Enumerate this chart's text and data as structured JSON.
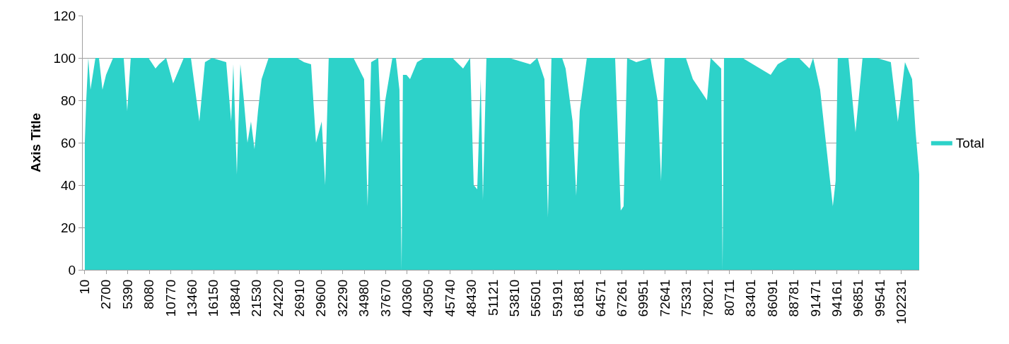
{
  "chart_data": {
    "type": "area",
    "ylabel": "Axis Title",
    "legend": "right",
    "grid": "y",
    "xlim": [
      -250,
      104450
    ],
    "ylim": [
      0,
      120
    ],
    "yticks": [
      0,
      20,
      40,
      60,
      80,
      100,
      120
    ],
    "xticks": [
      10,
      2700,
      5390,
      8080,
      10770,
      13460,
      16150,
      18840,
      21530,
      24220,
      26910,
      29600,
      32290,
      34980,
      37670,
      40360,
      43050,
      45740,
      48430,
      51121,
      53810,
      56501,
      59191,
      61881,
      64571,
      67261,
      69951,
      72641,
      75331,
      78021,
      80711,
      83401,
      86091,
      88781,
      91471,
      94161,
      96851,
      99541,
      102231
    ],
    "series": [
      {
        "name": "Total",
        "color": "#2dd2c9",
        "x": [
          10,
          190,
          450,
          720,
          1340,
          1780,
          2220,
          2670,
          3550,
          4880,
          5320,
          5760,
          7090,
          7980,
          8860,
          9300,
          10190,
          11070,
          12400,
          13290,
          14350,
          15050,
          15940,
          17710,
          18330,
          18600,
          19040,
          19480,
          19920,
          20370,
          20810,
          21250,
          21690,
          22140,
          23020,
          24790,
          26560,
          27450,
          28330,
          28950,
          29660,
          30100,
          30540,
          31430,
          33640,
          34970,
          35410,
          35850,
          36740,
          37180,
          37620,
          38510,
          38950,
          39390,
          39660,
          39830,
          40280,
          40720,
          41600,
          42490,
          44260,
          46030,
          47360,
          48240,
          48690,
          49130,
          49570,
          49840,
          50280,
          51340,
          53110,
          55770,
          56650,
          57540,
          57980,
          58420,
          59750,
          60190,
          61070,
          61520,
          61960,
          62850,
          65060,
          66390,
          67090,
          67450,
          67890,
          69040,
          70810,
          71700,
          72140,
          72580,
          74350,
          75240,
          76120,
          77010,
          77890,
          78340,
          79660,
          79840,
          80020,
          82320,
          84530,
          85860,
          86740,
          88070,
          89400,
          90720,
          91170,
          92050,
          93640,
          93990,
          94260,
          95590,
          96480,
          97360,
          99130,
          100900,
          101780,
          102670,
          103560,
          104000,
          104450
        ],
        "values": [
          60,
          80,
          100,
          85,
          100,
          100,
          85,
          92,
          100,
          100,
          75,
          100,
          100,
          100,
          95,
          97,
          100,
          88,
          100,
          100,
          70,
          98,
          100,
          98,
          70,
          97,
          45,
          97,
          80,
          60,
          70,
          57,
          75,
          90,
          100,
          100,
          100,
          98,
          97,
          60,
          70,
          40,
          100,
          100,
          100,
          90,
          30,
          98,
          100,
          60,
          80,
          100,
          100,
          85,
          0,
          92,
          92,
          90,
          98,
          100,
          100,
          100,
          95,
          100,
          40,
          38,
          90,
          33,
          100,
          100,
          100,
          97,
          100,
          90,
          25,
          100,
          100,
          95,
          70,
          35,
          75,
          100,
          100,
          100,
          28,
          30,
          100,
          98,
          100,
          80,
          42,
          100,
          100,
          100,
          90,
          85,
          80,
          100,
          95,
          0,
          100,
          100,
          95,
          92,
          97,
          100,
          100,
          95,
          100,
          85,
          30,
          42,
          100,
          100,
          65,
          100,
          100,
          98,
          70,
          98,
          90,
          65,
          45
        ]
      }
    ]
  }
}
